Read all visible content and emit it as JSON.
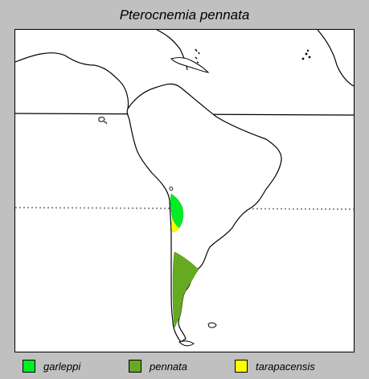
{
  "title": "Pterocnemia pennata",
  "legend": [
    {
      "label": "garleppi",
      "color": "#00ee22"
    },
    {
      "label": "pennata",
      "color": "#66aa22"
    },
    {
      "label": "tarapacensis",
      "color": "#ffff00"
    }
  ],
  "colors": {
    "background": "#c0c0c0",
    "map_fill": "#ffffff",
    "outline": "#000000"
  }
}
